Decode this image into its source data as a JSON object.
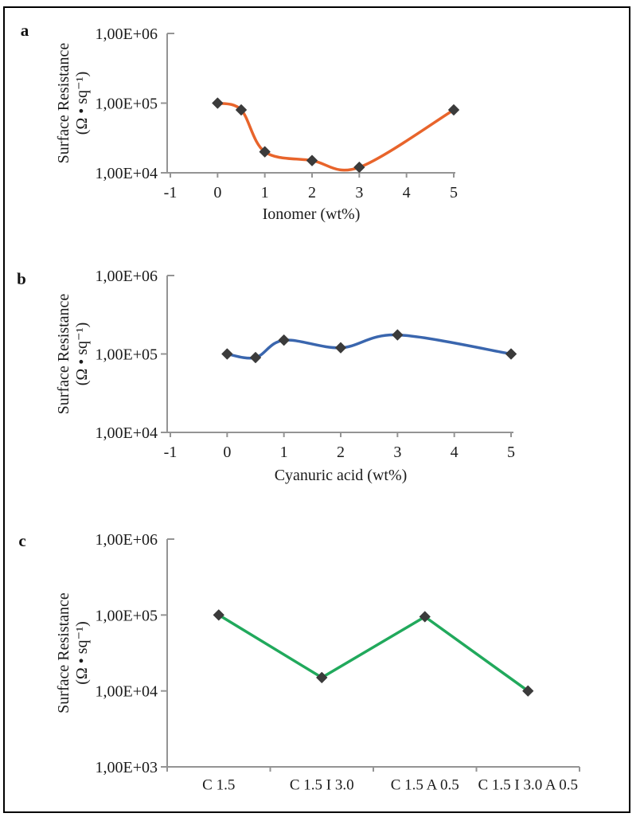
{
  "figure": {
    "background": "#ffffff",
    "frame_color": "#000000",
    "panel_labels": [
      "a",
      "b",
      "c"
    ]
  },
  "styles": {
    "axis_color": "#949494",
    "text_color": "#1b1b1b",
    "marker_color": "#3b3b3b"
  },
  "chart_data": [
    {
      "panel_label": "a",
      "type": "line",
      "smooth": true,
      "x": [
        0,
        0.5,
        1,
        2,
        3,
        5
      ],
      "values": [
        100000,
        80000,
        20000,
        15000,
        12000,
        80000
      ],
      "xlabel": "Ionomer (wt%)",
      "ylabel": "Surface Resistance (Ω • sq⁻¹)",
      "ylabel_line1": "Surface Resistance",
      "ylabel_line2": "(Ω • sq⁻¹)",
      "xlim": [
        -1,
        5
      ],
      "ylim": [
        10000,
        1000000
      ],
      "y_scale": "log",
      "x_tick_values": [
        -1,
        0,
        1,
        2,
        3,
        4,
        5
      ],
      "x_tick_labels": [
        "-1",
        "0",
        "1",
        "2",
        "3",
        "4",
        "5"
      ],
      "y_tick_labels": [
        "1,00E+04",
        "1,00E+05",
        "1,00E+06"
      ],
      "grid": false,
      "legend": "none",
      "line_color": "#e8642b",
      "marker": "diamond",
      "marker_color": "#3b3b3b"
    },
    {
      "panel_label": "b",
      "type": "line",
      "smooth": true,
      "x": [
        0,
        0.5,
        1,
        2,
        3,
        5
      ],
      "values": [
        100000,
        90000,
        150000,
        120000,
        175000,
        100000
      ],
      "xlabel": "Cyanuric acid (wt%)",
      "ylabel": "Surface Resistance (Ω • sq⁻¹)",
      "ylabel_line1": "Surface Resistance",
      "ylabel_line2": "(Ω • sq⁻¹)",
      "xlim": [
        -1,
        5
      ],
      "ylim": [
        10000,
        1000000
      ],
      "y_scale": "log",
      "x_tick_values": [
        -1,
        0,
        1,
        2,
        3,
        4,
        5
      ],
      "x_tick_labels": [
        "-1",
        "0",
        "1",
        "2",
        "3",
        "4",
        "5"
      ],
      "y_tick_labels": [
        "1,00E+04",
        "1,00E+05",
        "1,00E+06"
      ],
      "grid": false,
      "legend": "none",
      "line_color": "#3a66ae",
      "marker": "diamond",
      "marker_color": "#3b3b3b"
    },
    {
      "panel_label": "c",
      "type": "line",
      "smooth": false,
      "categories": [
        "C 1.5",
        "C 1.5 I 3.0",
        "C 1.5 A 0.5",
        "C 1.5 I 3.0 A 0.5"
      ],
      "values": [
        100000,
        15000,
        95000,
        10000
      ],
      "xlabel": "",
      "ylabel": "Surface Resistance (Ω • sq⁻¹)",
      "ylabel_line1": "Surface Resistance",
      "ylabel_line2": "(Ω • sq⁻¹)",
      "ylim": [
        1000,
        1000000
      ],
      "y_scale": "log",
      "y_tick_labels": [
        "1,00E+03",
        "1,00E+04",
        "1,00E+05",
        "1,00E+06"
      ],
      "grid": false,
      "legend": "none",
      "line_color": "#21a95c",
      "marker": "diamond",
      "marker_color": "#3b3b3b"
    }
  ]
}
